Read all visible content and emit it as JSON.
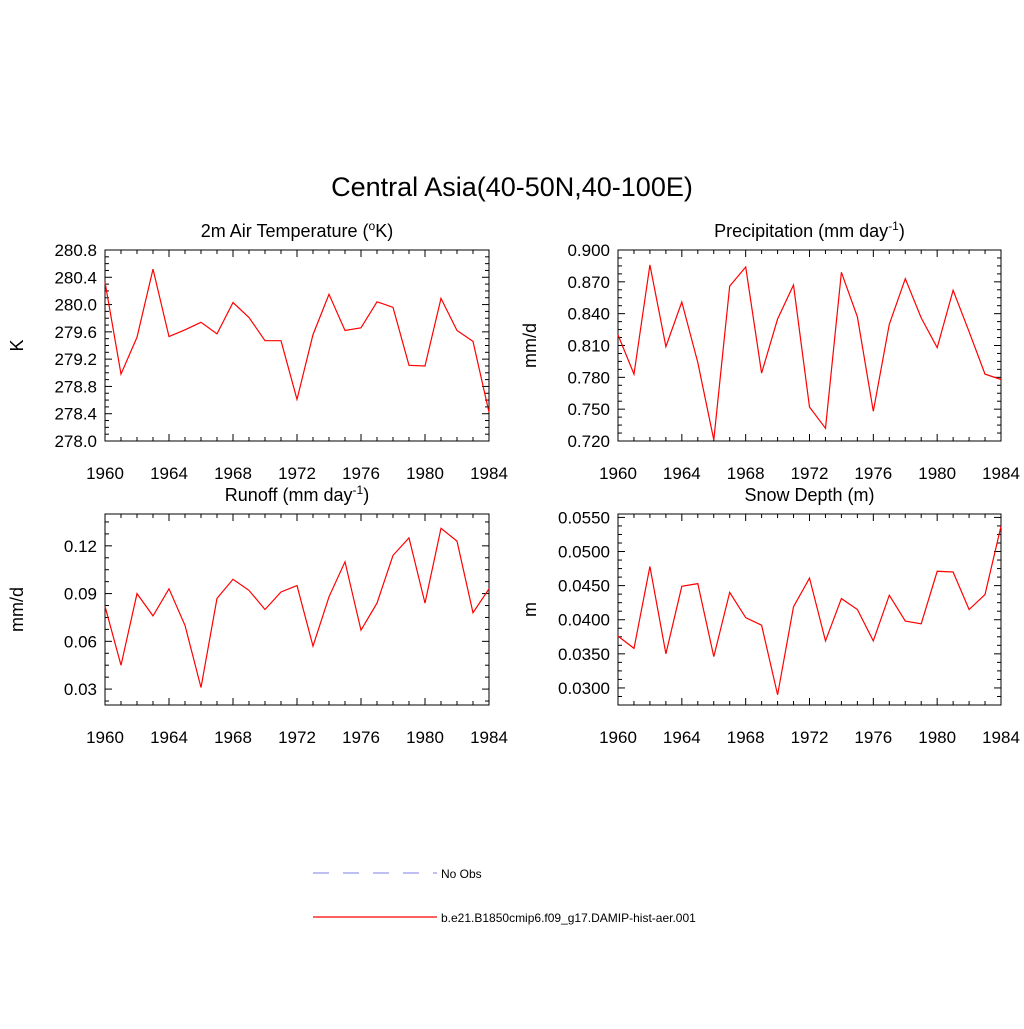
{
  "figure": {
    "title": "Central Asia(40-50N,40-100E)"
  },
  "legend": {
    "placement": "bottom-center",
    "entries": [
      {
        "label": "No Obs",
        "color": "#9999ee",
        "dash": "dashed"
      },
      {
        "label": "b.e21.B1850cmip6.f09_g17.DAMIP-hist-aer.001",
        "color": "#ff0000",
        "dash": "solid"
      }
    ]
  },
  "chart_data": [
    {
      "type": "line",
      "title": "2m Air Temperature (oK)",
      "title_parts": {
        "main": "2m Air Temperature (",
        "sup": "o",
        "end": "K)"
      },
      "xlabel": "",
      "ylabel": "K",
      "xlim": [
        1960,
        1984
      ],
      "ylim": [
        278.0,
        280.8
      ],
      "x_ticks": [
        "1960",
        "1964",
        "1968",
        "1972",
        "1976",
        "1980",
        "1984"
      ],
      "y_ticks": [
        "278.0",
        "278.4",
        "278.8",
        "279.2",
        "279.6",
        "280.0",
        "280.4",
        "280.8"
      ],
      "grid": false,
      "series": [
        {
          "color": "#ff0000",
          "x": [
            1960,
            1961,
            1962,
            1963,
            1964,
            1965,
            1966,
            1967,
            1968,
            1969,
            1970,
            1971,
            1972,
            1973,
            1974,
            1975,
            1976,
            1977,
            1978,
            1979,
            1980,
            1981,
            1982,
            1983,
            1984
          ],
          "values": [
            280.33,
            278.98,
            279.52,
            280.52,
            279.53,
            279.63,
            279.74,
            279.57,
            280.03,
            279.81,
            279.47,
            279.47,
            278.61,
            279.56,
            280.15,
            279.62,
            279.66,
            280.04,
            279.96,
            279.11,
            279.1,
            280.09,
            279.62,
            279.46,
            278.42
          ]
        }
      ]
    },
    {
      "type": "line",
      "title": "Precipitation (mm day-1)",
      "title_parts": {
        "main": "Precipitation (mm day",
        "sup": "-1",
        "end": ")"
      },
      "xlabel": "",
      "ylabel": "mm/d",
      "xlim": [
        1960,
        1984
      ],
      "ylim": [
        0.72,
        0.9
      ],
      "x_ticks": [
        "1960",
        "1964",
        "1968",
        "1972",
        "1976",
        "1980",
        "1984"
      ],
      "y_ticks": [
        "0.720",
        "0.750",
        "0.780",
        "0.810",
        "0.840",
        "0.870",
        "0.900"
      ],
      "grid": false,
      "series": [
        {
          "color": "#ff0000",
          "x": [
            1960,
            1961,
            1962,
            1963,
            1964,
            1965,
            1966,
            1967,
            1968,
            1969,
            1970,
            1971,
            1972,
            1973,
            1974,
            1975,
            1976,
            1977,
            1978,
            1979,
            1980,
            1981,
            1982,
            1983,
            1984
          ],
          "values": [
            0.82,
            0.783,
            0.886,
            0.809,
            0.851,
            0.794,
            0.721,
            0.866,
            0.884,
            0.784,
            0.835,
            0.867,
            0.752,
            0.732,
            0.879,
            0.837,
            0.748,
            0.83,
            0.873,
            0.836,
            0.808,
            0.862,
            0.823,
            0.783,
            0.778
          ]
        }
      ]
    },
    {
      "type": "line",
      "title": "Runoff (mm day-1)",
      "title_parts": {
        "main": "Runoff (mm day",
        "sup": "-1",
        "end": ")"
      },
      "xlabel": "",
      "ylabel": "mm/d",
      "xlim": [
        1960,
        1984
      ],
      "ylim": [
        0.02,
        0.14
      ],
      "x_ticks": [
        "1960",
        "1964",
        "1968",
        "1972",
        "1976",
        "1980",
        "1984"
      ],
      "y_ticks": [
        "0.03",
        "0.06",
        "0.09",
        "0.12"
      ],
      "grid": false,
      "series": [
        {
          "color": "#ff0000",
          "x": [
            1960,
            1961,
            1962,
            1963,
            1964,
            1965,
            1966,
            1967,
            1968,
            1969,
            1970,
            1971,
            1972,
            1973,
            1974,
            1975,
            1976,
            1977,
            1978,
            1979,
            1980,
            1981,
            1982,
            1983,
            1984
          ],
          "values": [
            0.082,
            0.045,
            0.09,
            0.076,
            0.093,
            0.07,
            0.031,
            0.087,
            0.099,
            0.092,
            0.08,
            0.091,
            0.095,
            0.057,
            0.088,
            0.11,
            0.067,
            0.084,
            0.114,
            0.125,
            0.084,
            0.131,
            0.123,
            0.078,
            0.093
          ]
        }
      ]
    },
    {
      "type": "line",
      "title": "Snow Depth (m)",
      "title_parts": {
        "main": "Snow Depth (m)",
        "sup": "",
        "end": ""
      },
      "xlabel": "",
      "ylabel": "m",
      "xlim": [
        1960,
        1984
      ],
      "ylim": [
        0.0275,
        0.0555
      ],
      "x_ticks": [
        "1960",
        "1964",
        "1968",
        "1972",
        "1976",
        "1980",
        "1984"
      ],
      "y_ticks": [
        "0.0300",
        "0.0350",
        "0.0400",
        "0.0450",
        "0.0500",
        "0.0550"
      ],
      "grid": false,
      "series": [
        {
          "color": "#ff0000",
          "x": [
            1960,
            1961,
            1962,
            1963,
            1964,
            1965,
            1966,
            1967,
            1968,
            1969,
            1970,
            1971,
            1972,
            1973,
            1974,
            1975,
            1976,
            1977,
            1978,
            1979,
            1980,
            1981,
            1982,
            1983,
            1984
          ],
          "values": [
            0.0376,
            0.0358,
            0.0478,
            0.035,
            0.0449,
            0.0453,
            0.0346,
            0.044,
            0.0403,
            0.0392,
            0.029,
            0.0419,
            0.0461,
            0.0369,
            0.0431,
            0.0415,
            0.0369,
            0.0436,
            0.0398,
            0.0394,
            0.0471,
            0.047,
            0.0415,
            0.0437,
            0.0537
          ]
        }
      ]
    }
  ]
}
